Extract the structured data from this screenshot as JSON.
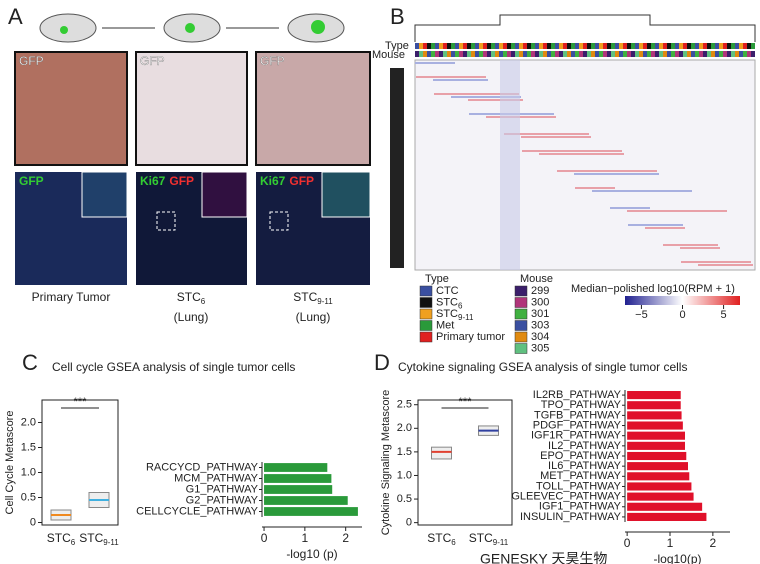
{
  "panel_a": {
    "letter": "A",
    "top_labels": [
      "GFP",
      "GFP",
      "GFP"
    ],
    "bottom_labels": [
      [
        "GFP"
      ],
      [
        "Ki67",
        "GFP"
      ],
      [
        "Ki67",
        "GFP"
      ]
    ],
    "columns": [
      {
        "text": "Primary Tumor"
      },
      {
        "text": "STC",
        "sub": "6",
        "note": "(Lung)"
      },
      {
        "text": "STC",
        "sub": "9-11",
        "note": "(Lung)"
      }
    ]
  },
  "panel_b": {
    "letter": "B",
    "track_labels": [
      "Type",
      "Mouse"
    ],
    "type_legend": {
      "title": "Type",
      "items": [
        {
          "text": "CTC",
          "color": "#3a4fa0"
        },
        {
          "text": "STC",
          "sub": "6",
          "color": "#111111"
        },
        {
          "text": "STC",
          "sub": "9-11",
          "color": "#f0a020"
        },
        {
          "text": "Met",
          "color": "#2a9a3a"
        },
        {
          "text": "Primary tumor",
          "color": "#e02020"
        }
      ]
    },
    "mouse_legend": {
      "title": "Mouse",
      "items": [
        {
          "text": "299",
          "color": "#3b1f6b"
        },
        {
          "text": "300",
          "color": "#b0357a"
        },
        {
          "text": "301",
          "color": "#40b040"
        },
        {
          "text": "303",
          "color": "#3a4fa0"
        },
        {
          "text": "304",
          "color": "#e08a10"
        },
        {
          "text": "305",
          "color": "#60c080"
        }
      ]
    },
    "colorbar": {
      "label": "Median−polished log10(RPM + 1)",
      "ticks": [
        {
          "value": -5,
          "label": "−5"
        },
        0,
        5
      ],
      "lim": [
        -7,
        7
      ]
    }
  },
  "panel_c": {
    "letter": "C",
    "title": "Cell cycle GSEA analysis of single tumor cells"
  },
  "panel_d": {
    "letter": "D",
    "title": "Cytokine signaling GSEA analysis of single tumor cells"
  },
  "watermark": [
    "GENESKY",
    "天昊生物"
  ],
  "chart_data": [
    {
      "type": "box",
      "ylabel": "Cell Cycle Metascore",
      "annotation": "***",
      "categories": [
        {
          "text": "STC",
          "sub": "6"
        },
        {
          "text": "STC",
          "sub": "9-11"
        }
      ],
      "boxes": [
        {
          "q1": 0.05,
          "median": 0.15,
          "q3": 0.25,
          "color": "#f08a20"
        },
        {
          "q1": 0.3,
          "median": 0.45,
          "q3": 0.6,
          "color": "#40b0e0"
        }
      ],
      "ylim": [
        -0.05,
        2.45
      ],
      "yticks": [
        0,
        0.5,
        {
          "value": 1,
          "label": "1.0"
        },
        1.5,
        {
          "value": 2,
          "label": "2.0"
        }
      ]
    },
    {
      "type": "barh",
      "xlabel": "-log10 (p)",
      "color": "#2a9a3a",
      "categories": [
        "RACCYCD_PATHWAY",
        "MCM_PATHWAY",
        "G1_PATHWAY",
        "G2_PATHWAY",
        "CELLCYCLE_PATHWAY"
      ],
      "values": [
        1.55,
        1.65,
        1.67,
        2.05,
        2.3
      ],
      "xlim": [
        -0.05,
        2.4
      ],
      "xticks": [
        0,
        1,
        2
      ]
    },
    {
      "type": "box",
      "ylabel": "Cytokine Signaling Metascore",
      "annotation": "***",
      "categories": [
        {
          "text": "STC",
          "sub": "6"
        },
        {
          "text": "STC",
          "sub": "9-11"
        }
      ],
      "boxes": [
        {
          "q1": 1.35,
          "median": 1.5,
          "q3": 1.6,
          "color": "#e04030"
        },
        {
          "q1": 1.85,
          "median": 1.95,
          "q3": 2.05,
          "color": "#3040a0"
        }
      ],
      "ylim": [
        -0.05,
        2.6
      ],
      "yticks": [
        0,
        0.5,
        {
          "value": 1,
          "label": "1.0"
        },
        1.5,
        {
          "value": 2,
          "label": "2.0"
        },
        2.5
      ]
    },
    {
      "type": "barh",
      "xlabel": "-log10(p)",
      "color": "#e0102a",
      "categories": [
        "IL2RB_PATHWAY",
        "TPO_PATHWAY",
        "TGFB_PATHWAY",
        "PDGF_PATHWAY",
        "IGF1R_PATHWAY",
        "IL2_PATHWAY",
        "EPO_PATHWAY",
        "IL6_PATHWAY",
        "MET_PATHWAY",
        "TOLL_PATHWAY",
        "GLEEVEC_PATHWAY",
        "IGF1_PATHWAY",
        "INSULIN_PATHWAY"
      ],
      "values": [
        1.25,
        1.25,
        1.27,
        1.3,
        1.35,
        1.35,
        1.38,
        1.42,
        1.45,
        1.5,
        1.55,
        1.75,
        1.85
      ],
      "xlim": [
        -0.05,
        2.4
      ],
      "xticks": [
        0,
        1,
        2
      ]
    }
  ]
}
